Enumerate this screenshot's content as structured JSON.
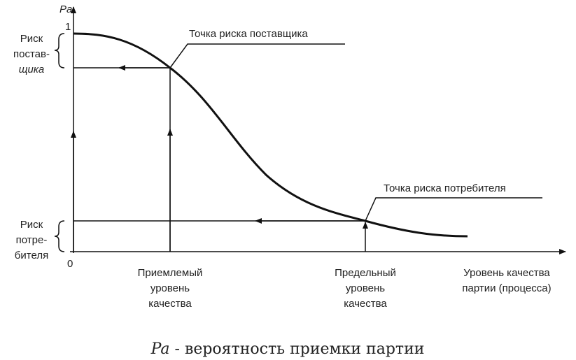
{
  "axis": {
    "y_label": "Pa",
    "y_top": "1",
    "origin": "0",
    "x_label": [
      "Уровень качества",
      "партии (процесса)"
    ]
  },
  "supplier_risk": {
    "label": [
      "Риск",
      "постав-",
      "щика"
    ],
    "point": "Точка риска поставщика",
    "quality": [
      "Приемлемый",
      "уровень",
      "качества"
    ]
  },
  "consumer_risk": {
    "label": [
      "Риск",
      "потре-",
      "бителя"
    ],
    "point": "Точка риска потребителя",
    "quality": [
      "Предельный",
      "уровень",
      "качества"
    ]
  },
  "caption": {
    "symbol": "Pa",
    "text": "- вероятность приемки партии"
  }
}
